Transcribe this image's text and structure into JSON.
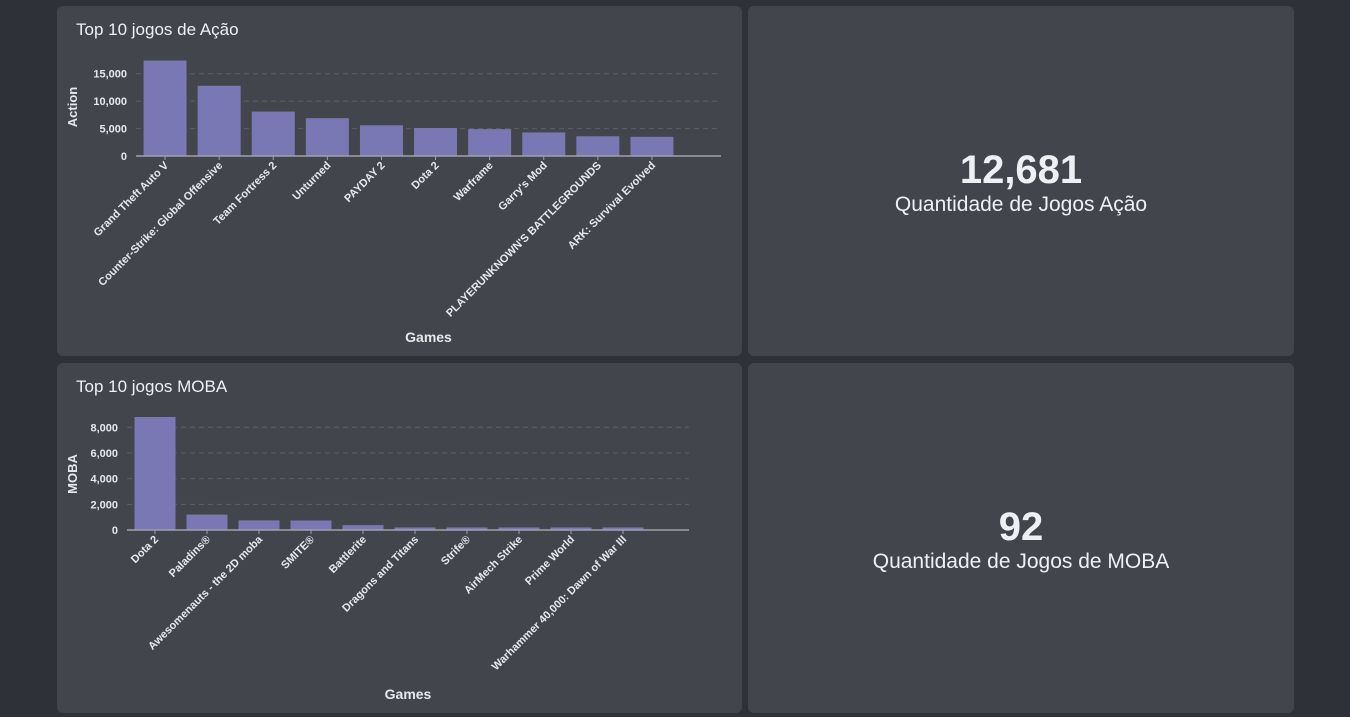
{
  "colors": {
    "bar": "#7a78b4",
    "grid": "#5d6068",
    "axis": "#9fa2a8"
  },
  "chart_data": [
    {
      "type": "bar",
      "title": "Top 10 jogos de Ação",
      "xlabel": "Games",
      "ylabel": "Action",
      "ylim": [
        0,
        17500
      ],
      "yticks": [
        0,
        5000,
        10000,
        15000
      ],
      "ytick_labels": [
        "0",
        "5,000",
        "10,000",
        "15,000"
      ],
      "grid": true,
      "categories": [
        "Grand Theft Auto V",
        "Counter-Strike: Global Offensive",
        "Team Fortress 2",
        "Unturned",
        "PAYDAY 2",
        "Dota 2",
        "Warframe",
        "Garry's Mod",
        "PLAYERUNKNOWN'S BATTLEGROUNDS",
        "ARK: Survival Evolved"
      ],
      "values": [
        17400,
        12800,
        8100,
        6900,
        5600,
        5100,
        4900,
        4300,
        3600,
        3500
      ]
    },
    {
      "type": "bar",
      "title": "Top 10 jogos MOBA",
      "xlabel": "Games",
      "ylabel": "MOBA",
      "ylim": [
        0,
        8800
      ],
      "yticks": [
        0,
        2000,
        4000,
        6000,
        8000
      ],
      "ytick_labels": [
        "0",
        "2,000",
        "4,000",
        "6,000",
        "8,000"
      ],
      "grid": true,
      "categories": [
        "Dota 2",
        "Paladins®",
        "Awesomenauts - the 2D moba",
        "SMITE®",
        "Battlerite",
        "Dragons and Titans",
        "Strife®",
        "AirMech Strike",
        "Prime World",
        "Warhammer 40,000: Dawn of War III"
      ],
      "values": [
        8800,
        1200,
        750,
        740,
        380,
        200,
        200,
        200,
        200,
        200
      ]
    }
  ],
  "kpis": [
    {
      "value": "12,681",
      "label": "Quantidade de Jogos Ação"
    },
    {
      "value": "92",
      "label": "Quantidade de Jogos de MOBA"
    }
  ]
}
